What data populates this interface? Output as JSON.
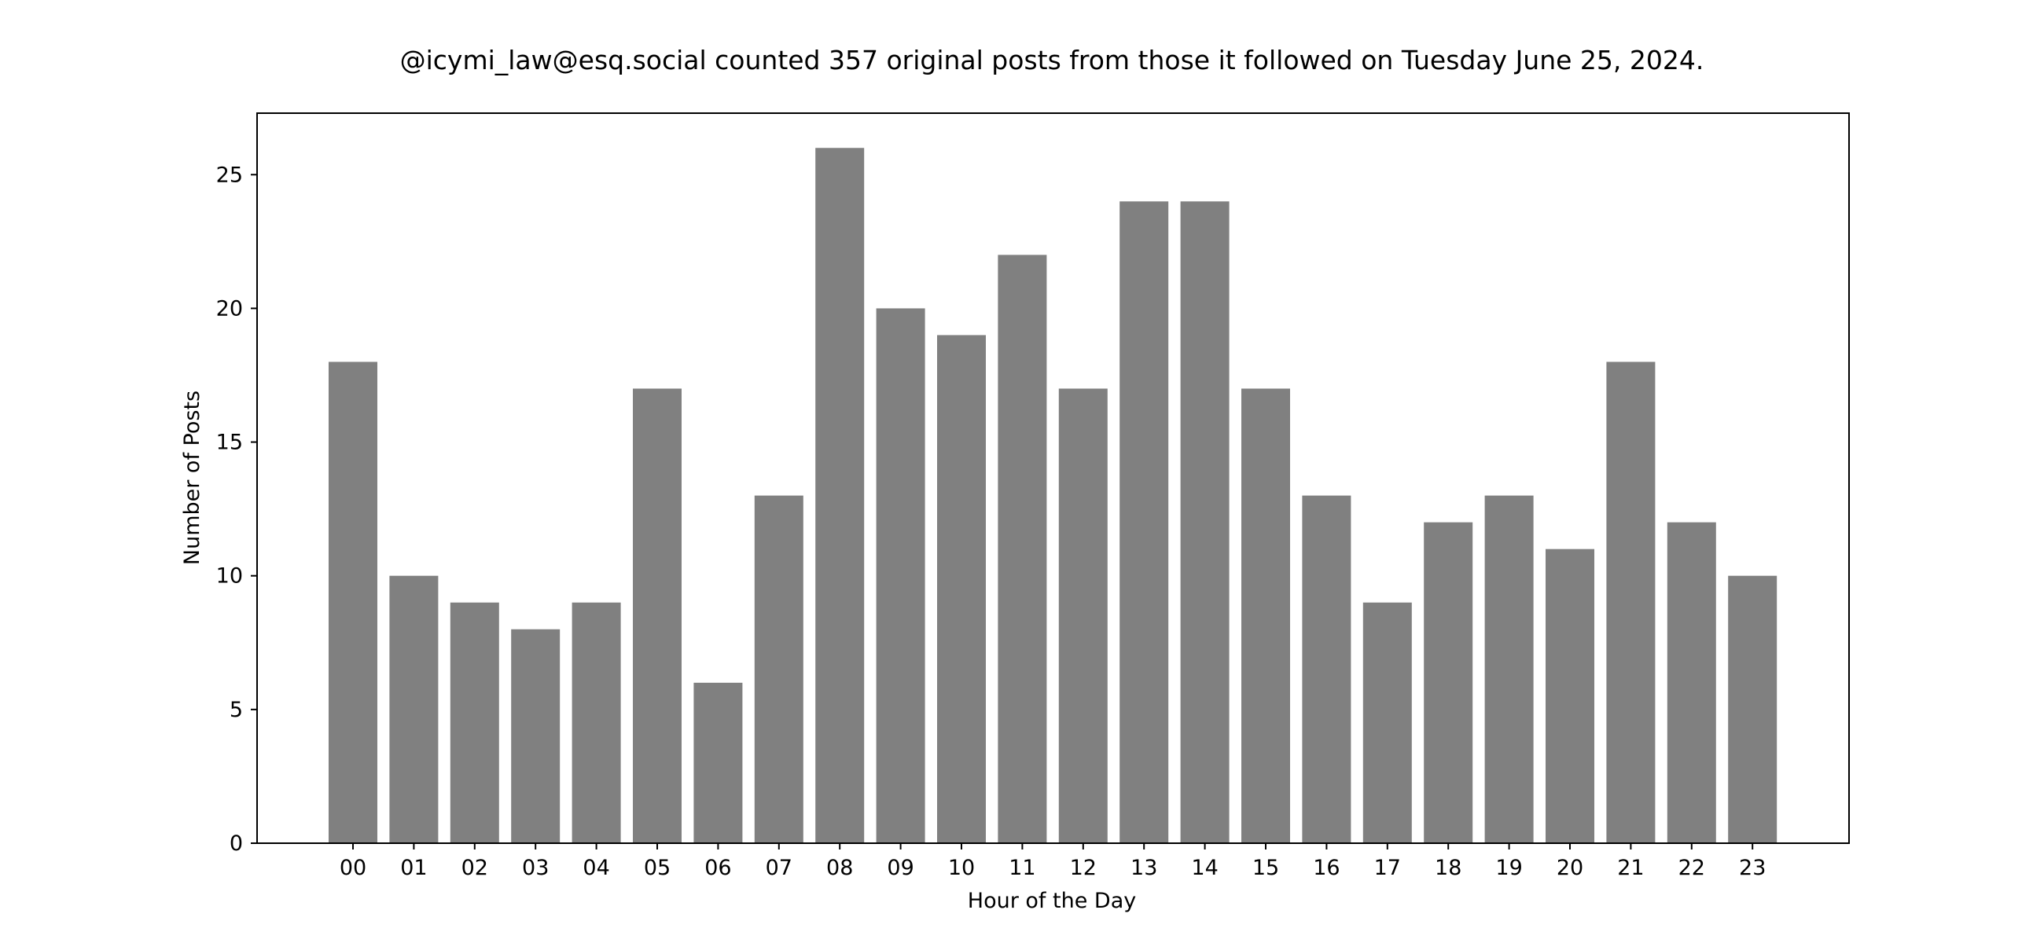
{
  "chart_data": {
    "type": "bar",
    "title": "@icymi_law@esq.social counted 357 original posts from those it followed on Tuesday June 25, 2024.",
    "xlabel": "Hour of the Day",
    "ylabel": "Number of Posts",
    "categories": [
      "00",
      "01",
      "02",
      "03",
      "04",
      "05",
      "06",
      "07",
      "08",
      "09",
      "10",
      "11",
      "12",
      "13",
      "14",
      "15",
      "16",
      "17",
      "18",
      "19",
      "20",
      "21",
      "22",
      "23"
    ],
    "values": [
      18,
      10,
      9,
      8,
      9,
      17,
      6,
      13,
      26,
      20,
      19,
      22,
      17,
      24,
      24,
      17,
      13,
      9,
      12,
      13,
      11,
      18,
      12,
      10
    ],
    "ylim": [
      0,
      27.3
    ],
    "yticks": [
      0,
      5,
      10,
      15,
      20,
      25
    ],
    "bar_color": "#808080",
    "grid": false,
    "legend": false
  }
}
